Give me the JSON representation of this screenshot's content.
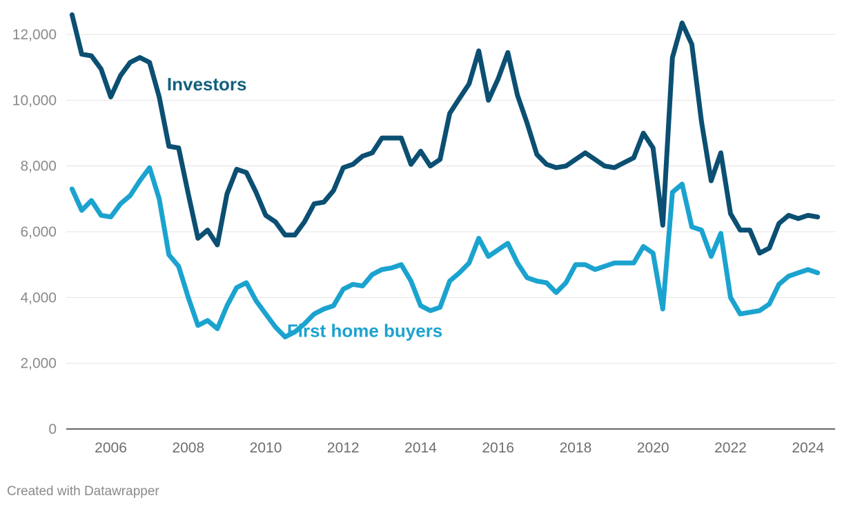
{
  "footer": {
    "credit": "Created with Datawrapper"
  },
  "chart_data": {
    "type": "line",
    "title": "",
    "xlabel": "",
    "ylabel": "",
    "ylim": [
      0,
      12000
    ],
    "y_ticks": [
      0,
      2000,
      4000,
      6000,
      8000,
      10000,
      12000
    ],
    "y_tick_labels": [
      "0",
      "2,000",
      "4,000",
      "6,000",
      "8,000",
      "10,000",
      "12,000"
    ],
    "xlim": [
      2004.85,
      2024.7
    ],
    "x_ticks": [
      2006,
      2008,
      2010,
      2012,
      2014,
      2016,
      2018,
      2020,
      2022,
      2024
    ],
    "x_tick_labels": [
      "2006",
      "2008",
      "2010",
      "2012",
      "2014",
      "2016",
      "2018",
      "2020",
      "2022",
      "2024"
    ],
    "grid": true,
    "legend": "direct labels on lines",
    "start_year": 2005,
    "step_years": 0.25,
    "series": [
      {
        "name": "Investors",
        "color": "#0b4f72",
        "label_color": "#13607e",
        "values": [
          12600,
          11400,
          11350,
          10950,
          10100,
          10750,
          11150,
          11300,
          11150,
          10100,
          8600,
          8550,
          7150,
          5800,
          6050,
          5600,
          7150,
          7900,
          7800,
          7200,
          6500,
          6300,
          5900,
          5900,
          6300,
          6850,
          6900,
          7250,
          7950,
          8050,
          8300,
          8400,
          8850,
          8850,
          8850,
          8050,
          8450,
          8000,
          8200,
          9600,
          10050,
          10500,
          11500,
          10000,
          10650,
          11450,
          10150,
          9300,
          8350,
          8050,
          7950,
          8000,
          8200,
          8400,
          8200,
          8000,
          7950,
          8100,
          8250,
          9000,
          8550,
          6200,
          11300,
          12350,
          11700,
          9350,
          7550,
          8400,
          6550,
          6050,
          6050,
          5350,
          5500,
          6250,
          6500,
          6400,
          6500,
          6450
        ]
      },
      {
        "name": "First home buyers",
        "color": "#1ba3cf",
        "label_color": "#1ba3cf",
        "values": [
          7300,
          6650,
          6950,
          6500,
          6450,
          6850,
          7100,
          7550,
          7950,
          7000,
          5300,
          4950,
          4000,
          3150,
          3300,
          3050,
          3750,
          4300,
          4450,
          3900,
          3500,
          3100,
          2800,
          2950,
          3200,
          3500,
          3650,
          3750,
          4250,
          4400,
          4350,
          4700,
          4850,
          4900,
          5000,
          4500,
          3750,
          3600,
          3700,
          4500,
          4750,
          5050,
          5800,
          5250,
          5450,
          5650,
          5050,
          4600,
          4500,
          4450,
          4150,
          4450,
          5000,
          5000,
          4850,
          4950,
          5050,
          5050,
          5050,
          5550,
          5350,
          3650,
          7200,
          7450,
          6150,
          6050,
          5250,
          5950,
          4000,
          3500,
          3550,
          3600,
          3800,
          4400,
          4650,
          4750,
          4850,
          4750
        ]
      }
    ],
    "annotations": [
      {
        "text": "Investors",
        "series": 0,
        "x": 2007.45,
        "y": 10300
      },
      {
        "text": "First home buyers",
        "series": 1,
        "x": 2010.55,
        "y": 2800
      }
    ]
  }
}
